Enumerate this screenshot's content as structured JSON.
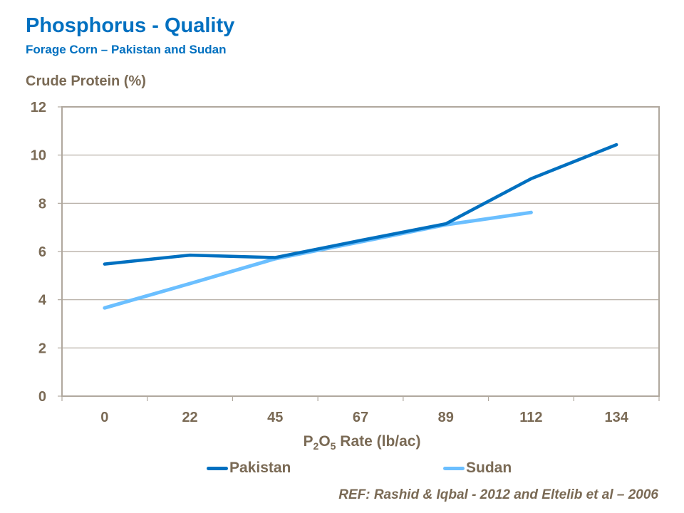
{
  "title": "Phosphorus  - Quality",
  "subtitle": "Forage Corn – Pakistan and Sudan",
  "reference": "REF: Rashid & Iqbal - 2012 and Eltelib et al – 2006",
  "colors": {
    "pakistan": "#0070c0",
    "sudan": "#6bbfff",
    "text": "#7a6a55",
    "grid": "#b0a89e"
  },
  "chart_data": {
    "type": "line",
    "title": "Phosphorus  - Quality",
    "ylabel": "Crude Protein (%)",
    "xlabel_parts": {
      "p": "P",
      "sub1": "2",
      "o": "O",
      "sub2": "5",
      "rest": " Rate (lb/ac)"
    },
    "categories": [
      "0",
      "22",
      "45",
      "67",
      "89",
      "112",
      "134"
    ],
    "ylim": [
      0,
      12
    ],
    "yticks": [
      "0",
      "2",
      "4",
      "6",
      "8",
      "10",
      "12"
    ],
    "grid": true,
    "legend_position": "bottom",
    "series": [
      {
        "name": "Pakistan",
        "values": [
          5.48,
          5.85,
          5.75,
          6.46,
          7.15,
          9.02,
          10.43
        ]
      },
      {
        "name": "Sudan",
        "values": [
          3.66,
          4.67,
          5.7,
          6.4,
          7.11,
          7.62,
          null
        ]
      }
    ]
  }
}
